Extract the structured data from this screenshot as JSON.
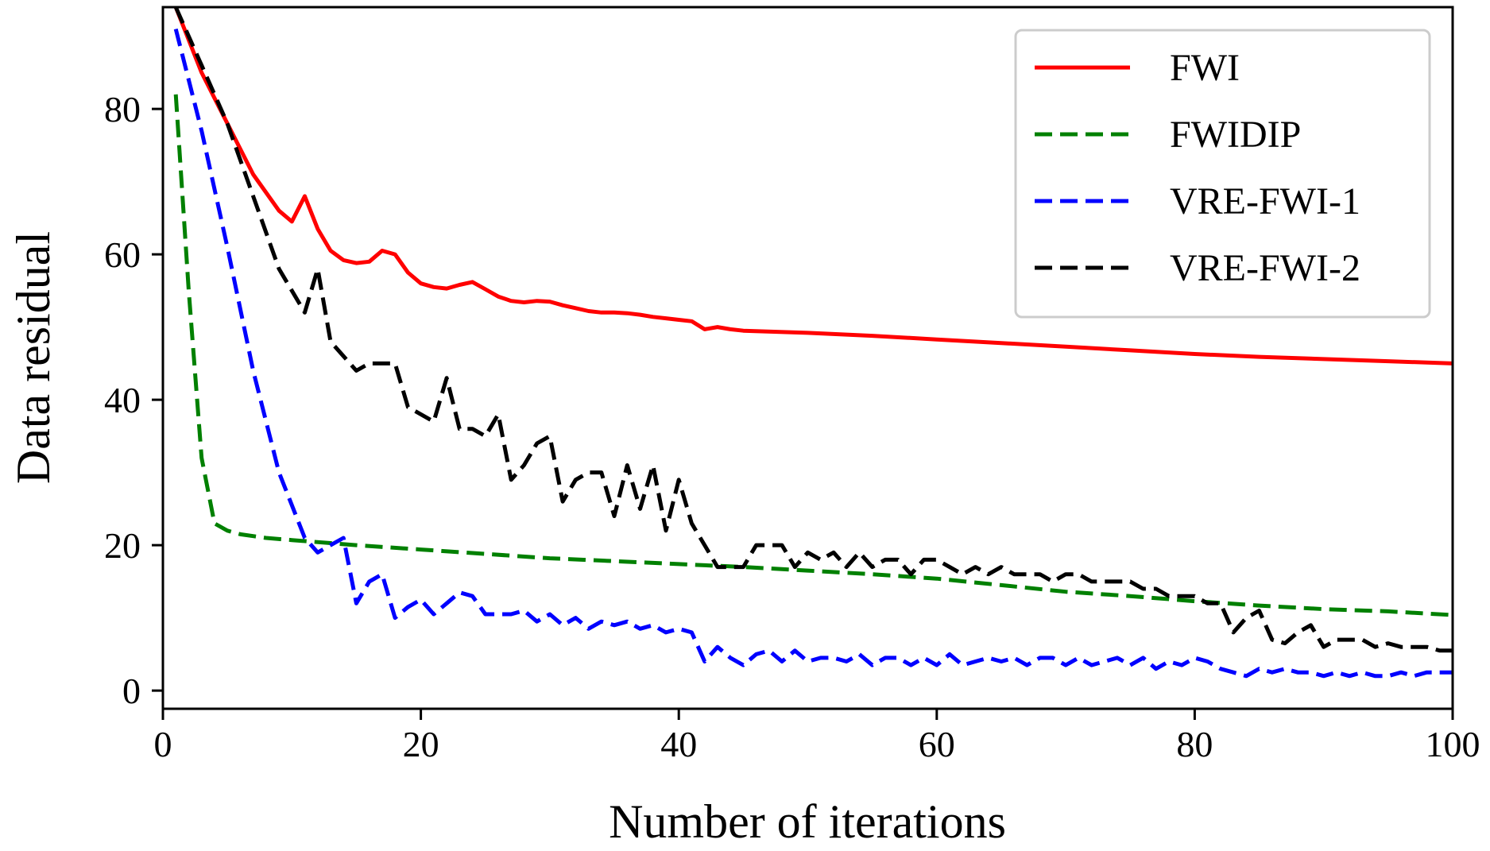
{
  "chart_data": {
    "type": "line",
    "title": "",
    "xlabel": "Number of iterations",
    "ylabel": "Data residual",
    "xlim": [
      0,
      100
    ],
    "ylim": [
      -2.5,
      94
    ],
    "xticks": [
      0,
      20,
      40,
      60,
      80,
      100
    ],
    "yticks": [
      0,
      20,
      40,
      60,
      80
    ],
    "grid": false,
    "legend_position": "top-right",
    "series": [
      {
        "name": "FWI",
        "color": "#ff0000",
        "style": "solid",
        "x": [
          1,
          3,
          5,
          7,
          9,
          10,
          11,
          12,
          13,
          14,
          15,
          16,
          17,
          18,
          19,
          20,
          21,
          22,
          23,
          24,
          25,
          26,
          27,
          28,
          29,
          30,
          31,
          32,
          33,
          34,
          35,
          36,
          37,
          38,
          39,
          40,
          41,
          42,
          43,
          44,
          45,
          50,
          55,
          60,
          65,
          70,
          75,
          80,
          85,
          90,
          95,
          100
        ],
        "y": [
          94,
          85,
          78,
          71,
          66,
          64.5,
          68,
          63.5,
          60.5,
          59.2,
          58.8,
          59,
          60.5,
          60,
          57.5,
          56,
          55.5,
          55.3,
          55.8,
          56.2,
          55.2,
          54.2,
          53.6,
          53.4,
          53.6,
          53.5,
          53,
          52.6,
          52.2,
          52,
          52,
          51.9,
          51.7,
          51.4,
          51.2,
          51,
          50.8,
          49.7,
          50,
          49.7,
          49.5,
          49.2,
          48.8,
          48.3,
          47.8,
          47.3,
          46.8,
          46.3,
          45.9,
          45.6,
          45.3,
          45
        ]
      },
      {
        "name": "FWIDIP",
        "color": "#008000",
        "style": "dashed",
        "x": [
          1,
          2,
          3,
          4,
          5,
          6,
          8,
          10,
          15,
          20,
          25,
          30,
          35,
          40,
          45,
          50,
          55,
          60,
          65,
          70,
          75,
          80,
          85,
          90,
          95,
          100
        ],
        "y": [
          82,
          55,
          32,
          23,
          22,
          21.5,
          21,
          20.7,
          20,
          19.4,
          18.8,
          18.2,
          17.8,
          17.4,
          17,
          16.5,
          16,
          15.4,
          14.5,
          13.6,
          13,
          12.3,
          11.7,
          11.2,
          10.9,
          10.4
        ]
      },
      {
        "name": "VRE-FWI-1",
        "color": "#0000ff",
        "style": "dashed",
        "x": [
          1,
          3,
          5,
          7,
          9,
          11,
          12,
          13,
          14,
          15,
          16,
          17,
          18,
          19,
          20,
          21,
          22,
          23,
          24,
          25,
          26,
          27,
          28,
          29,
          30,
          31,
          32,
          33,
          34,
          35,
          36,
          37,
          38,
          39,
          40,
          41,
          42,
          43,
          44,
          45,
          46,
          47,
          48,
          49,
          50,
          51,
          52,
          53,
          54,
          55,
          56,
          57,
          58,
          59,
          60,
          61,
          62,
          63,
          64,
          65,
          66,
          67,
          68,
          69,
          70,
          71,
          72,
          73,
          74,
          75,
          76,
          77,
          78,
          79,
          80,
          81,
          82,
          83,
          84,
          85,
          86,
          87,
          88,
          89,
          90,
          91,
          92,
          93,
          94,
          95,
          96,
          97,
          98,
          99,
          100
        ],
        "y": [
          91,
          77,
          61,
          44,
          30,
          21,
          19,
          20,
          21,
          12,
          15,
          16,
          10,
          11.5,
          12.5,
          10.5,
          12,
          13.5,
          13,
          10.5,
          10.5,
          10.5,
          11,
          9.5,
          10.5,
          9,
          10,
          8.5,
          9.5,
          9,
          9.5,
          8.5,
          9,
          8,
          8.5,
          8,
          4,
          6,
          4.5,
          3.5,
          5,
          5.5,
          4,
          5.5,
          4,
          4.5,
          4.5,
          4,
          5,
          3.5,
          4.5,
          4.5,
          3.5,
          4.5,
          3.5,
          5,
          3.5,
          4,
          4.5,
          4,
          4.5,
          3.5,
          4.5,
          4.5,
          3.5,
          4.5,
          3.5,
          4,
          4.5,
          3.5,
          4.5,
          3,
          4,
          3.5,
          4.5,
          4,
          3,
          2.5,
          2,
          3,
          2.5,
          3,
          2.5,
          2.5,
          2,
          2.5,
          2,
          2.5,
          2,
          2,
          2.5,
          2,
          2.5,
          2.5,
          2.5
        ]
      },
      {
        "name": "VRE-FWI-2",
        "color": "#000000",
        "style": "dashed",
        "x": [
          1,
          3,
          5,
          7,
          9,
          11,
          12,
          13,
          14,
          15,
          16,
          17,
          18,
          19,
          20,
          21,
          22,
          23,
          24,
          25,
          26,
          27,
          28,
          29,
          30,
          31,
          32,
          33,
          34,
          35,
          36,
          37,
          38,
          39,
          40,
          41,
          42,
          43,
          44,
          45,
          46,
          47,
          48,
          49,
          50,
          51,
          52,
          53,
          54,
          55,
          56,
          57,
          58,
          59,
          60,
          61,
          62,
          63,
          64,
          65,
          66,
          67,
          68,
          69,
          70,
          71,
          72,
          73,
          74,
          75,
          76,
          77,
          78,
          79,
          80,
          81,
          82,
          83,
          84,
          85,
          86,
          87,
          88,
          89,
          90,
          91,
          92,
          93,
          94,
          95,
          96,
          97,
          98,
          99,
          100
        ],
        "y": [
          94,
          86,
          78,
          68,
          58,
          52,
          58,
          48,
          46,
          44,
          45,
          45,
          45,
          39,
          38,
          37,
          43,
          36,
          36,
          35,
          38,
          29,
          31,
          34,
          35,
          26,
          29,
          30,
          30,
          24,
          31,
          25,
          31,
          22,
          29,
          23,
          20,
          17,
          17,
          17,
          20,
          20,
          20,
          17,
          19,
          18,
          19,
          17,
          19,
          17,
          18,
          18,
          16,
          18,
          18,
          17,
          16,
          17,
          16,
          17,
          16,
          16,
          16,
          15,
          16,
          16,
          15,
          15,
          15,
          15,
          14,
          14,
          13,
          13,
          13,
          12,
          12,
          8,
          10,
          11,
          7,
          6.5,
          8,
          9,
          6,
          7,
          7,
          7,
          6,
          6.5,
          6,
          6,
          6,
          5.5,
          5.5
        ]
      }
    ]
  }
}
